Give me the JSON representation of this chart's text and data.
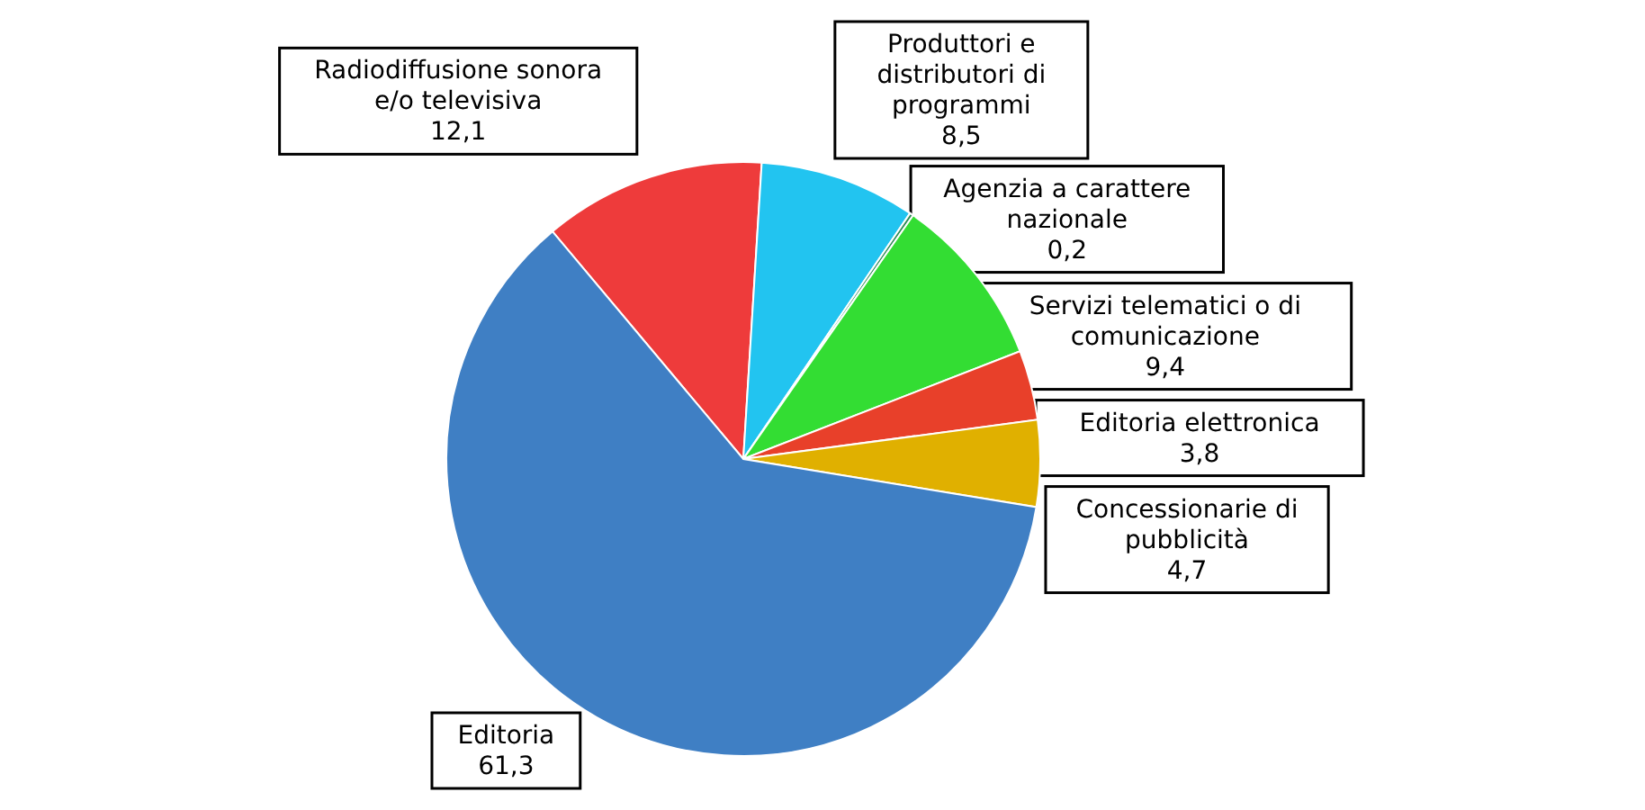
{
  "chart_data": {
    "type": "pie",
    "categories": [
      "Radiodiffusione sonora e/o televisiva",
      "Produttori e distributori di programmi",
      "Agenzia a carattere nazionale",
      "Servizi telematici o di comunicazione",
      "Editoria elettronica",
      "Concessionarie di pubblicità",
      "Editoria"
    ],
    "values": [
      12.1,
      8.5,
      0.2,
      9.4,
      3.8,
      4.7,
      61.3
    ],
    "value_labels": [
      "12,1",
      "8,5",
      "0,2",
      "9,4",
      "3,8",
      "4,7",
      "61,3"
    ],
    "colors": [
      "#ee3b3b",
      "#22c4f0",
      "#2e8b57",
      "#33dd33",
      "#e8402a",
      "#e0b000",
      "#3f7fc4"
    ],
    "legend": false
  }
}
